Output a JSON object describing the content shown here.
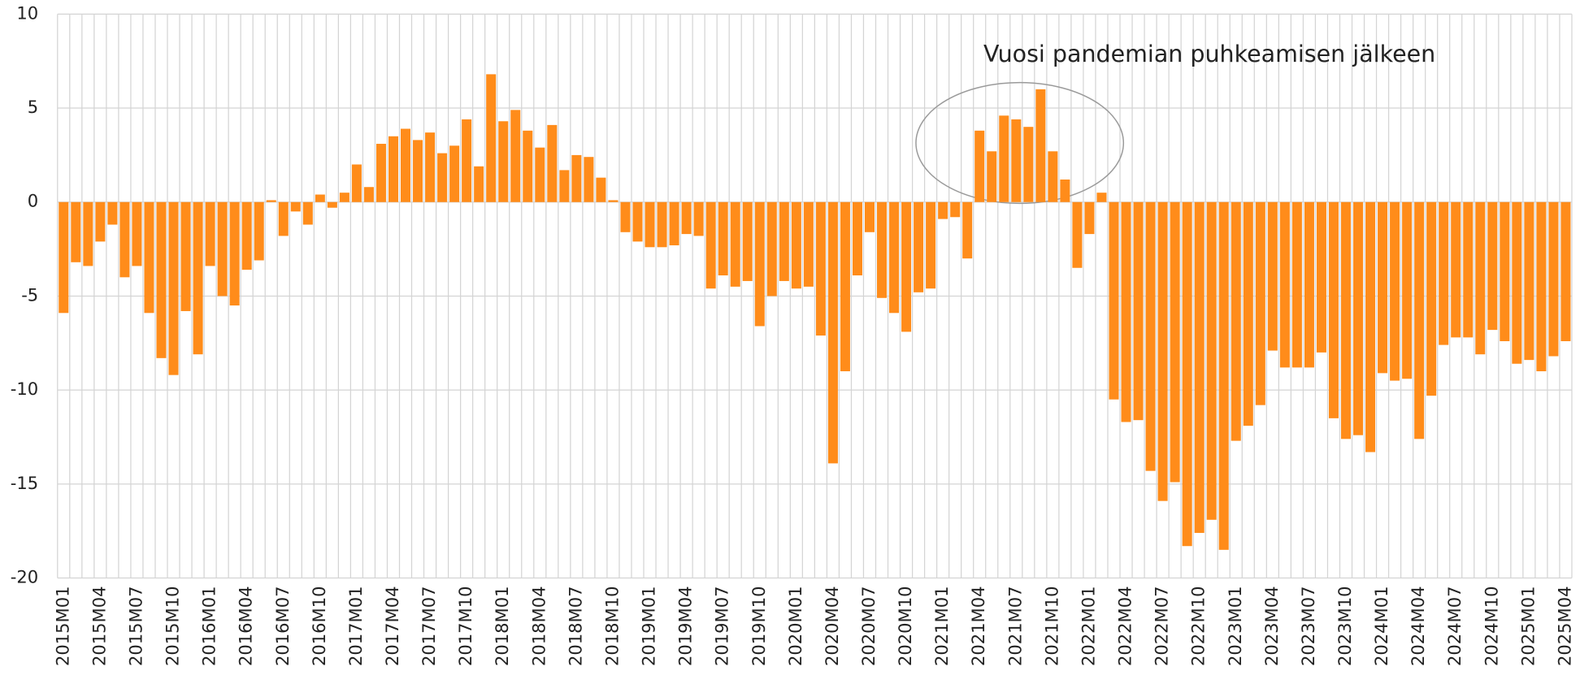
{
  "chart_data": {
    "type": "bar",
    "annotation": "Vuosi pandemian puhkeamisen jälkeen",
    "categories": [
      "2015M01",
      null,
      null,
      "2015M04",
      null,
      null,
      "2015M07",
      null,
      null,
      "2015M10",
      null,
      null,
      "2016M01",
      null,
      null,
      "2016M04",
      null,
      null,
      "2016M07",
      null,
      null,
      "2016M10",
      null,
      null,
      "2017M01",
      null,
      null,
      "2017M04",
      null,
      null,
      "2017M07",
      null,
      null,
      "2017M10",
      null,
      null,
      "2018M01",
      null,
      null,
      "2018M04",
      null,
      null,
      "2018M07",
      null,
      null,
      "2018M10",
      null,
      null,
      "2019M01",
      null,
      null,
      "2019M04",
      null,
      null,
      "2019M07",
      null,
      null,
      "2019M10",
      null,
      null,
      "2020M01",
      null,
      null,
      "2020M04",
      null,
      null,
      "2020M07",
      null,
      null,
      "2020M10",
      null,
      null,
      "2021M01",
      null,
      null,
      "2021M04",
      null,
      null,
      "2021M07",
      null,
      null,
      "2021M10",
      null,
      null,
      "2022M01",
      null,
      null,
      "2022M04",
      null,
      null,
      "2022M07",
      null,
      null,
      "2022M10",
      null,
      null,
      "2023M01",
      null,
      null,
      "2023M04",
      null,
      null,
      "2023M07",
      null,
      null,
      "2023M10",
      null,
      null,
      "2024M01",
      null,
      null,
      "2024M04",
      null,
      null,
      "2024M07",
      null,
      null,
      "2024M10",
      null,
      null,
      "2025M01",
      null,
      null,
      "2025M04"
    ],
    "values": [
      -5.9,
      -3.2,
      -3.4,
      -2.1,
      -1.2,
      -4.0,
      -3.4,
      -5.9,
      -8.3,
      -9.2,
      -5.8,
      -8.1,
      -3.4,
      -5.0,
      -5.5,
      -3.6,
      -3.1,
      0.1,
      -1.8,
      -0.5,
      -1.2,
      0.4,
      -0.3,
      0.5,
      2.0,
      0.8,
      3.1,
      3.5,
      3.9,
      3.3,
      3.7,
      2.6,
      3.0,
      4.4,
      1.9,
      6.8,
      4.3,
      4.9,
      3.8,
      2.9,
      4.1,
      1.7,
      2.5,
      2.4,
      1.3,
      0.1,
      -1.6,
      -2.1,
      -2.4,
      -2.4,
      -2.3,
      -1.7,
      -1.8,
      -4.6,
      -3.9,
      -4.5,
      -4.2,
      -6.6,
      -5.0,
      -4.2,
      -4.6,
      -4.5,
      -7.1,
      -13.9,
      -9.0,
      -3.9,
      -1.6,
      -5.1,
      -5.9,
      -6.9,
      -4.8,
      -4.6,
      -0.9,
      -0.8,
      -3.0,
      3.8,
      2.7,
      4.6,
      4.4,
      4.0,
      6.0,
      2.7,
      1.2,
      -3.5,
      -1.7,
      0.5,
      -10.5,
      -11.7,
      -11.6,
      -14.3,
      -15.9,
      -14.9,
      -18.3,
      -17.6,
      -16.9,
      -18.5,
      -12.7,
      -11.9,
      -10.8,
      -7.9,
      -8.8,
      -8.8,
      -8.8,
      -8.0,
      -11.5,
      -12.6,
      -12.4,
      -13.3,
      -9.1,
      -9.5,
      -9.4,
      -12.6,
      -10.3,
      -7.6,
      -7.2,
      -7.2,
      -8.1,
      -6.8,
      -7.4,
      -8.6,
      -8.4,
      -9.0,
      -8.2,
      -7.4
    ],
    "color": "#ff8c1a",
    "ylim": [
      -20,
      10
    ],
    "yticks": [
      -20,
      -15,
      -10,
      -5,
      0,
      5,
      10
    ],
    "grid": true
  }
}
